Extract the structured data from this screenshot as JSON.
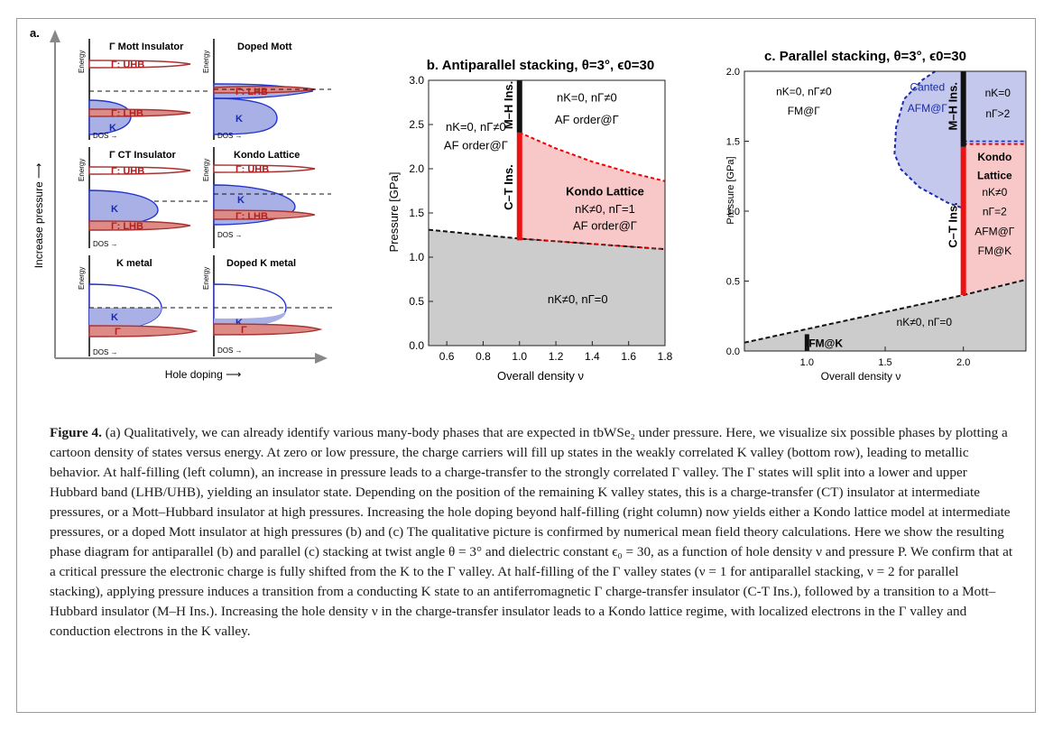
{
  "panel_a": {
    "label": "a.",
    "y_axis": "Increase pressure ⟶",
    "x_axis": "Hole doping ⟶",
    "energy": "Energy",
    "dos": "DOS →",
    "cells": [
      {
        "title": "Γ Mott Insulator",
        "bands": [
          "Γ: UHB",
          "K",
          "Γ: LHB"
        ]
      },
      {
        "title": "Doped Mott",
        "bands": [
          "Γ: LHB",
          "K"
        ]
      },
      {
        "title": "Γ CT Insulator",
        "bands": [
          "Γ: UHB",
          "K",
          "Γ: LHB"
        ]
      },
      {
        "title": "Kondo Lattice",
        "bands": [
          "Γ: UHB",
          "K",
          "Γ: LHB"
        ]
      },
      {
        "title": "K metal",
        "bands": [
          "K",
          "Γ"
        ]
      },
      {
        "title": "Doped K metal",
        "bands": [
          "K",
          "Γ"
        ]
      }
    ]
  },
  "chart_data": [
    {
      "type": "area",
      "title": "b. Antiparallel stacking, θ=3°, ϵ0=30",
      "xlabel": "Overall density ν",
      "ylabel": "Pressure [GPa]",
      "xlim": [
        0.5,
        1.8
      ],
      "ylim": [
        0.0,
        3.0
      ],
      "xticks": [
        "0.6",
        "0.8",
        "1.0",
        "1.2",
        "1.4",
        "1.6",
        "1.8"
      ],
      "yticks": [
        "0.0",
        "0.5",
        "1.0",
        "1.5",
        "2.0",
        "2.5",
        "3.0"
      ],
      "boundary_conducting": {
        "x": [
          0.5,
          1.0,
          1.8
        ],
        "y": [
          1.31,
          1.21,
          1.09
        ]
      },
      "boundary_kondo_top": {
        "x": [
          1.0,
          1.2,
          1.4,
          1.6,
          1.8
        ],
        "y": [
          2.41,
          2.23,
          2.08,
          1.96,
          1.86
        ]
      },
      "ct_line": {
        "x": 1.0,
        "y": [
          1.19,
          2.41
        ]
      },
      "mh_line": {
        "x": 1.0,
        "y": [
          2.41,
          3.0
        ]
      },
      "regions": {
        "left_a": "nK=0, nΓ≠0",
        "left_b": "AF order@Γ",
        "top_right_a": "nK=0, nΓ≠0",
        "top_right_b": "AF order@Γ",
        "kondo_title": "Kondo Lattice",
        "kondo_a": "nK≠0, nΓ=1",
        "kondo_b": "AF order@Γ",
        "bottom": "nK≠0, nΓ=0",
        "ct_label": "C–T Ins.",
        "mh_label": "M–H Ins."
      }
    },
    {
      "type": "area",
      "title": "c. Parallel stacking, θ=3°, ϵ0=30",
      "xlabel": "Overall density ν",
      "ylabel": "Pressure [GPa]",
      "xlim": [
        0.6,
        2.4
      ],
      "ylim": [
        0.0,
        2.0
      ],
      "xticks": [
        "1.0",
        "1.5",
        "2.0"
      ],
      "yticks": [
        "0.0",
        "0.5",
        "1.0",
        "1.5",
        "2.0"
      ],
      "boundary_conducting": {
        "x": [
          0.6,
          2.0,
          2.4
        ],
        "y": [
          0.06,
          0.4,
          0.51
        ]
      },
      "canted_boundary": {
        "x": [
          1.82,
          1.74,
          1.62,
          1.57,
          1.56,
          1.6,
          1.72,
          1.9,
          2.0
        ],
        "y": [
          2.0,
          1.94,
          1.8,
          1.6,
          1.41,
          1.3,
          1.17,
          1.06,
          1.02
        ]
      },
      "kondo_top": {
        "x": [
          2.0,
          2.4
        ],
        "y": [
          1.48,
          1.48
        ]
      },
      "ct_line": {
        "x": 2.0,
        "y": [
          0.4,
          1.46
        ]
      },
      "mh_line": {
        "x": 2.0,
        "y": [
          1.46,
          2.0
        ]
      },
      "fm_k_line": {
        "x": 1.0,
        "y": [
          0.0,
          0.12
        ]
      },
      "regions": {
        "left_a": "nK=0, nΓ≠0",
        "left_b": "FM@Γ",
        "canted_a": "Canted",
        "canted_b": "AFM@Γ",
        "top_right_a": "nK=0",
        "top_right_b": "nΓ>2",
        "kondo_title_a": "Kondo",
        "kondo_title_b": "Lattice",
        "kondo_a": "nK≠0",
        "kondo_b": "nΓ=2",
        "kondo_c": "AFM@Γ",
        "kondo_d": "FM@K",
        "bottom": "nK≠0, nΓ=0",
        "fm_k": "FM@K",
        "ct_label": "C–T Ins.",
        "mh_label": "M–H Ins."
      }
    }
  ],
  "caption": {
    "label": "Figure 4.",
    "text": " (a) Qualitatively, we can already identify various many-body phases that are expected in tbWSe₂ under pressure. Here, we visualize six possible phases by plotting a cartoon density of states versus energy. At zero or low pressure, the charge carriers will fill up states in the weakly correlated K valley (bottom row), leading to metallic behavior. At half-filling (left column), an increase in pressure leads to a charge-transfer to the strongly correlated Γ valley. The Γ states will split into a lower and upper Hubbard band (LHB/UHB), yielding an insulator state. Depending on the position of the remaining K valley states, this is a charge-transfer (CT) insulator at intermediate pressures, or a Mott–Hubbard insulator at high pressures. Increasing the hole doping beyond half-filling (right column) now yields either a Kondo lattice model at intermediate pressures, or a doped Mott insulator at high pressures (b) and (c) The qualitative picture is confirmed by numerical mean field theory calculations. Here we show the resulting phase diagram for antiparallel (b) and parallel (c) stacking at twist angle θ = 3° and dielectric constant ϵ₀ = 30, as a function of hole density ν and pressure P. We confirm that at a critical pressure the electronic charge is fully shifted from the K to the Γ valley. At half-filling of the Γ valley states (ν = 1 for antiparallel stacking, ν = 2 for parallel stacking), applying pressure induces a transition from a conducting K state to an antiferromagnetic Γ charge-transfer insulator (C-T Ins.), followed by a transition to a Mott–Hubbard insulator (M–H Ins.). Increasing the hole density ν in the charge-transfer insulator leads to a Kondo lattice regime, with localized electrons in the Γ valley and conduction electrons in the K valley."
  },
  "colors": {
    "gamma_fill": "#dd8b86",
    "gamma_stroke": "#a83232",
    "k_fill": "#a9b0e6",
    "k_stroke": "#2233cc",
    "red_label": "#b02020",
    "blue_label": "#1a2aa8",
    "kondo_region": "#f8c8c8",
    "canted_region": "#c4c8ec",
    "conducting_region": "#cccccc",
    "ct_line": "#ee1111"
  }
}
